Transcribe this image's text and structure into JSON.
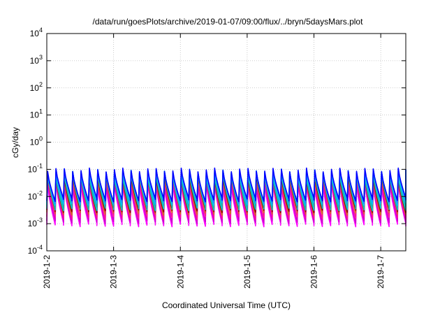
{
  "chart_data": {
    "type": "line",
    "title": "/data/run/goesPlots/archive/2019-01-07/09:00/flux/../bryn/5daysMars.plot",
    "xlabel": "Coordinated Universal Time (UTC)",
    "ylabel": "cGy/day",
    "x_ticks": [
      "2019-1-2",
      "2019-1-3",
      "2019-1-4",
      "2019-1-5",
      "2019-1-6",
      "2019-1-7"
    ],
    "xlim": [
      "2019-01-02",
      "2019-01-07 09:00"
    ],
    "y_scale": "log",
    "ylim": [
      0.0001,
      10000
    ],
    "y_ticks": [
      {
        "base": "10",
        "exp": "-4",
        "value": 0.0001
      },
      {
        "base": "10",
        "exp": "-3",
        "value": 0.001
      },
      {
        "base": "10",
        "exp": "-2",
        "value": 0.01
      },
      {
        "base": "10",
        "exp": "-1",
        "value": 0.1
      },
      {
        "base": "10",
        "exp": "0",
        "value": 1
      },
      {
        "base": "10",
        "exp": "1",
        "value": 10
      },
      {
        "base": "10",
        "exp": "2",
        "value": 100
      },
      {
        "base": "10",
        "exp": "3",
        "value": 1000
      },
      {
        "base": "10",
        "exp": "4",
        "value": 10000
      }
    ],
    "grid": true,
    "cycles_per_day": 8,
    "series": [
      {
        "color": "#ff00ff",
        "peak": 0.028,
        "trough": 0.0009
      },
      {
        "color": "#cc00cc",
        "peak": 0.036,
        "trough": 0.0012
      },
      {
        "color": "#ff1493",
        "peak": 0.045,
        "trough": 0.0017
      },
      {
        "color": "#d2691e",
        "peak": 0.055,
        "trough": 0.0024
      },
      {
        "color": "#8b0000",
        "peak": 0.06,
        "trough": 0.003
      },
      {
        "color": "#00ced1",
        "peak": 0.068,
        "trough": 0.0035
      },
      {
        "color": "#20b2aa",
        "peak": 0.075,
        "trough": 0.0045
      },
      {
        "color": "#00bfff",
        "peak": 0.082,
        "trough": 0.0055
      },
      {
        "color": "#1e90ff",
        "peak": 0.09,
        "trough": 0.0065
      },
      {
        "color": "#0000ff",
        "peak": 0.095,
        "trough": 0.0075
      }
    ]
  }
}
